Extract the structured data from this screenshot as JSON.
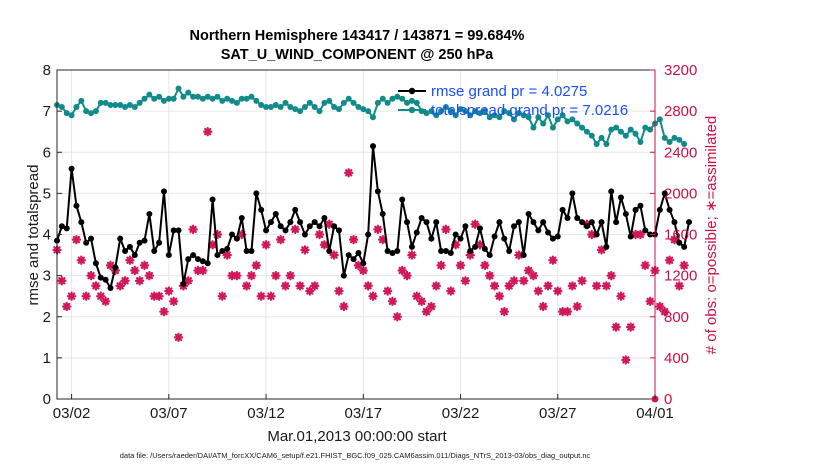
{
  "chart_data": {
    "type": "line",
    "title": "Northern Hemisphere 143417 / 143871 = 99.684%",
    "subtitle": "SAT_U_WIND_COMPONENT @ 250 hPa",
    "xlabel": "Mar.01,2013 00:00:00 start",
    "ylabel": "rmse and totalspread",
    "ylabel_right": "# of obs: o=possible; ∗=assimilated",
    "footer": "data file: /Users/raeder/DAI/ATM_forcXX/CAM6_setup/f.e21.FHIST_BGC.f09_025.CAM6assim.011/Diags_NTrS_2013-03/obs_diag_output.nc",
    "x_ticks": [
      {
        "label": "03/02",
        "day": 1
      },
      {
        "label": "03/07",
        "day": 6
      },
      {
        "label": "03/12",
        "day": 11
      },
      {
        "label": "03/17",
        "day": 16
      },
      {
        "label": "03/22",
        "day": 21
      },
      {
        "label": "03/27",
        "day": 26
      },
      {
        "label": "04/01",
        "day": 31
      }
    ],
    "xlim_days": [
      0.25,
      31
    ],
    "y_left": {
      "range": [
        0,
        8
      ],
      "ticks": [
        "0",
        "1",
        "2",
        "3",
        "4",
        "5",
        "6",
        "7",
        "8"
      ]
    },
    "y_right": {
      "range": [
        0,
        3200
      ],
      "ticks": [
        "0",
        "400",
        "800",
        "1200",
        "1600",
        "2000",
        "2400",
        "2800",
        "3200"
      ]
    },
    "grid": true,
    "legend_placement": "top-right",
    "colors": {
      "rmse": "#000000",
      "totalspread": "#108a8a",
      "obs": "#d0185a",
      "axis_right": "#cc1144",
      "legend_text": "#1a4fff"
    },
    "series": [
      {
        "name": "rmse grand pr = 4.0275",
        "axis": "left",
        "start_day": 0.25,
        "step_days": 0.25,
        "values": [
          3.85,
          4.2,
          4.15,
          5.6,
          4.7,
          4.3,
          3.8,
          3.9,
          3.3,
          2.95,
          2.9,
          2.7,
          3.2,
          3.9,
          3.6,
          3.7,
          3.5,
          3.8,
          3.85,
          4.5,
          3.6,
          3.8,
          5.05,
          3.5,
          4.1,
          4.1,
          2.8,
          3.4,
          3.5,
          3.4,
          3.35,
          3.3,
          4.85,
          3.5,
          3.6,
          3.65,
          4.0,
          3.9,
          4.4,
          3.6,
          3.6,
          5.0,
          4.6,
          4.1,
          4.3,
          4.5,
          4.2,
          4.1,
          4.3,
          4.6,
          4.3,
          4.0,
          4.2,
          4.3,
          4.2,
          4.4,
          3.6,
          4.2,
          4.1,
          3.0,
          3.5,
          3.4,
          3.55,
          3.3,
          4.0,
          6.15,
          5.05,
          4.5,
          3.6,
          3.55,
          3.6,
          4.85,
          4.3,
          3.7,
          4.05,
          4.4,
          4.3,
          3.9,
          4.3,
          3.6,
          3.6,
          3.55,
          4.0,
          3.9,
          4.2,
          3.6,
          3.7,
          4.15,
          3.65,
          3.5,
          3.95,
          4.3,
          3.9,
          3.6,
          4.2,
          4.3,
          3.5,
          4.5,
          4.3,
          4.1,
          4.3,
          4.05,
          3.9,
          3.95,
          4.6,
          4.4,
          5.0,
          4.4,
          4.3,
          4.2,
          4.3,
          4.0,
          4.3,
          3.7,
          5.05,
          4.3,
          4.9,
          4.5,
          3.95,
          4.6,
          4.7,
          4.1,
          4.0,
          4.0,
          4.6,
          5.0,
          4.6,
          4.3,
          3.8,
          3.7,
          4.3
        ]
      },
      {
        "name": "totalspread grand pr = 7.0216",
        "axis": "left",
        "start_day": 0.25,
        "step_days": 0.25,
        "values": [
          7.15,
          7.1,
          6.95,
          6.9,
          7.1,
          7.25,
          7.0,
          6.95,
          7.0,
          7.2,
          7.2,
          7.15,
          7.15,
          7.15,
          7.1,
          7.15,
          7.1,
          7.2,
          7.3,
          7.4,
          7.3,
          7.35,
          7.25,
          7.3,
          7.3,
          7.55,
          7.35,
          7.45,
          7.35,
          7.35,
          7.3,
          7.35,
          7.3,
          7.35,
          7.25,
          7.3,
          7.25,
          7.2,
          7.3,
          7.3,
          7.35,
          7.25,
          7.15,
          7.1,
          7.1,
          7.15,
          7.1,
          7.2,
          7.1,
          7.05,
          7.0,
          7.1,
          7.2,
          7.1,
          7.0,
          7.2,
          7.25,
          7.1,
          7.05,
          7.2,
          7.3,
          7.2,
          7.1,
          7.05,
          7.0,
          6.85,
          7.2,
          7.3,
          7.2,
          7.3,
          7.35,
          7.3,
          7.2,
          7.25,
          7.2,
          7.0,
          6.95,
          7.0,
          6.9,
          7.0,
          7.1,
          7.0,
          6.9,
          7.05,
          7.0,
          6.9,
          7.0,
          6.95,
          7.0,
          6.85,
          6.9,
          6.85,
          7.0,
          6.95,
          6.8,
          6.95,
          6.9,
          6.85,
          6.6,
          6.85,
          6.7,
          6.9,
          6.6,
          6.8,
          6.9,
          6.75,
          6.8,
          6.7,
          6.6,
          6.5,
          6.4,
          6.2,
          6.35,
          6.2,
          6.55,
          6.6,
          6.5,
          6.4,
          6.55,
          6.45,
          6.25,
          6.6,
          6.55,
          6.7,
          6.8,
          6.35,
          6.25,
          6.35,
          6.3,
          6.2
        ]
      },
      {
        "name": "obs assimilated",
        "axis": "right",
        "start_day": 0.25,
        "step_days": 0.25,
        "values": [
          1450,
          1150,
          900,
          1000,
          1550,
          1350,
          1000,
          1200,
          1100,
          1000,
          950,
          1300,
          1250,
          1100,
          1150,
          1350,
          1250,
          1150,
          1300,
          1200,
          1000,
          1000,
          850,
          1050,
          950,
          600,
          1100,
          1150,
          1650,
          1250,
          1250,
          2600,
          1500,
          1600,
          1000,
          1400,
          1200,
          1200,
          1600,
          1100,
          1200,
          1300,
          1000,
          1500,
          1000,
          1200,
          1550,
          1100,
          1200,
          1650,
          1100,
          1450,
          1050,
          1100,
          1600,
          1500,
          1700,
          1400,
          1050,
          900,
          2200,
          1550,
          1300,
          1250,
          1100,
          1000,
          1650,
          1550,
          1050,
          950,
          800,
          1250,
          1200,
          1400,
          1000,
          950,
          850,
          900,
          1100,
          1300,
          1650,
          1050,
          1500,
          1300,
          1150,
          1400,
          1700,
          1500,
          1300,
          1200,
          1100,
          1000,
          850,
          1100,
          1150,
          1400,
          1150,
          1250,
          1200,
          1050,
          900,
          1100,
          1350,
          1050,
          850,
          850,
          1100,
          900,
          1150,
          1700,
          1600,
          1100,
          1450,
          1100,
          1200,
          700,
          1000,
          380,
          700,
          1600,
          1600,
          1300,
          950,
          1250,
          900,
          850,
          1350,
          1550,
          1100,
          1300
        ]
      }
    ]
  }
}
